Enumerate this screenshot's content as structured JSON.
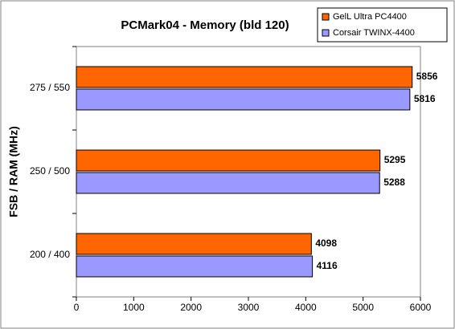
{
  "chart_data": {
    "type": "hbar",
    "title": "PCMark04 - Memory (bld 120)",
    "y_label": "FSB / RAM (MHz)",
    "categories": [
      "275 / 550",
      "250 / 500",
      "200 / 400"
    ],
    "series": [
      {
        "name": "GelL Ultra PC4400",
        "color": "#ff6600",
        "values": [
          5856,
          5295,
          4098
        ]
      },
      {
        "name": "Corsair TWINX-4400",
        "color": "#9999ff",
        "values": [
          5816,
          5288,
          4116
        ]
      }
    ],
    "xlim": [
      0,
      6000
    ],
    "xticks": [
      0,
      1000,
      2000,
      3000,
      4000,
      5000,
      6000
    ],
    "grid": false,
    "legend": "top-right"
  }
}
